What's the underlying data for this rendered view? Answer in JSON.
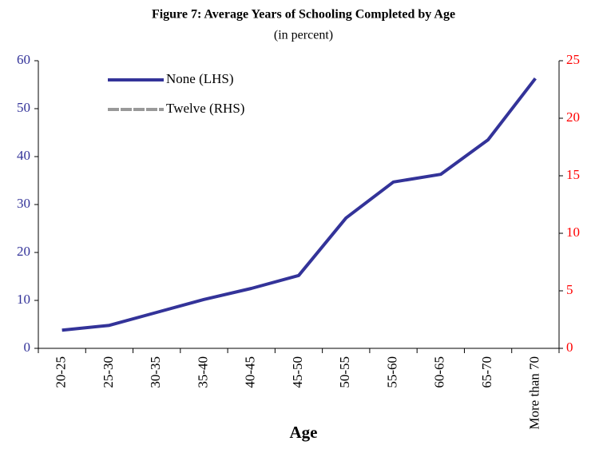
{
  "chart_data": {
    "type": "line",
    "title": "Figure 7: Average Years of Schooling Completed by Age",
    "subtitle": "(in percent)",
    "x_label": "Age",
    "categories": [
      "20-25",
      "25-30",
      "30-35",
      "35-40",
      "40-45",
      "45-50",
      "50-55",
      "55-60",
      "60-65",
      "65-70",
      "More than 70"
    ],
    "series": [
      {
        "name": "None (LHS)",
        "color": "#333399",
        "values": [
          3.8,
          4.8,
          7.5,
          10.2,
          12.5,
          15.2,
          27.2,
          34.7,
          36.3,
          43.5,
          56.3
        ]
      },
      {
        "name": "Twelve (RHS)",
        "color": "#999999",
        "axis": "y2",
        "values": [
          null,
          null,
          null,
          null,
          null,
          null,
          null,
          null,
          null,
          null,
          null
        ]
      }
    ],
    "ylim": [
      0,
      60
    ],
    "yticks": [
      0,
      10,
      20,
      30,
      40,
      50,
      60
    ],
    "y2lim": [
      0,
      25
    ],
    "y2ticks": [
      0,
      5,
      10,
      15,
      20,
      25
    ],
    "y_color": "#333399",
    "y2_color": "#ff0000"
  }
}
